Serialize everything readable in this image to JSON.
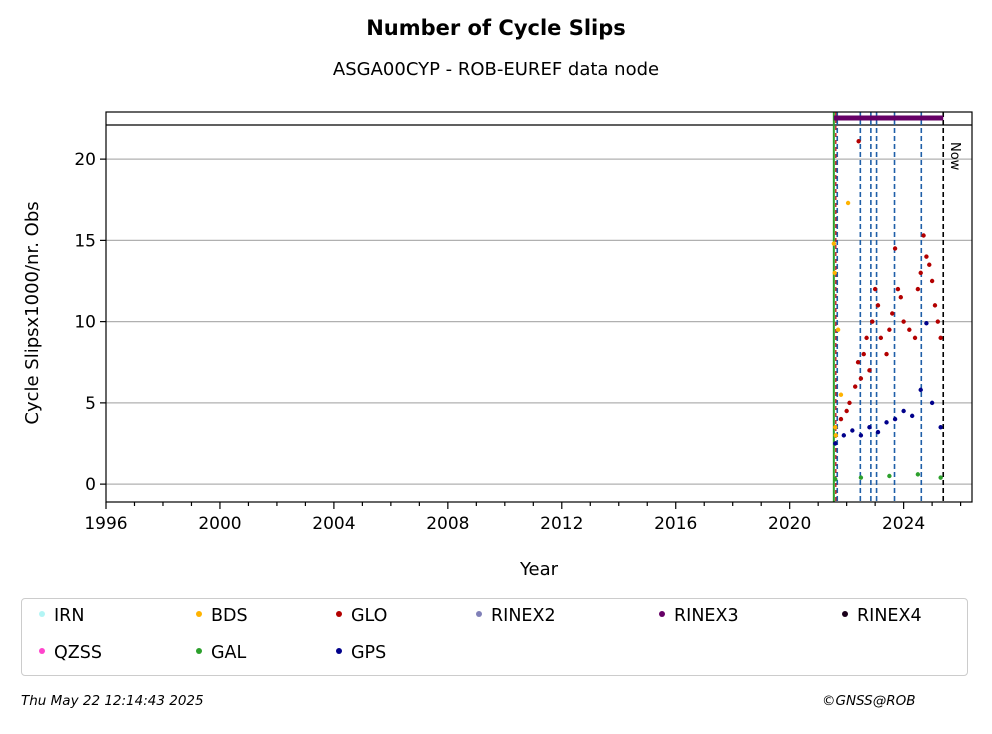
{
  "title": "Number of Cycle Slips",
  "subtitle": "ASGA00CYP - ROB-EUREF data node",
  "footer": {
    "timestamp": "Thu May 22 12:14:43 2025",
    "copyright": "©GNSS@ROB"
  },
  "chart_data": {
    "type": "scatter",
    "xlabel": "Year",
    "ylabel": "Cycle Slipsx1000/nr. Obs",
    "xlim": [
      1996,
      2026.4
    ],
    "ylim": [
      -1.1,
      22.9
    ],
    "x_ticks": [
      1996,
      2000,
      2004,
      2008,
      2012,
      2016,
      2020,
      2024
    ],
    "y_ticks": [
      0,
      5,
      10,
      15,
      20
    ],
    "grid": "horizontal",
    "now_label": "Now",
    "now_x": 2025.39,
    "station_start_x": 2021.55,
    "event_lines_x": [
      2021.67,
      2022.48,
      2022.85,
      2023.05,
      2023.68,
      2024.62
    ],
    "rinex3_period": [
      2021.55,
      2025.39
    ],
    "legend_placement": "bottom",
    "legend": [
      {
        "name": "IRN",
        "color": "#b3f5f5"
      },
      {
        "name": "BDS",
        "color": "#ffb300"
      },
      {
        "name": "GLO",
        "color": "#b30000"
      },
      {
        "name": "RINEX2",
        "color": "#8080b8"
      },
      {
        "name": "RINEX3",
        "color": "#660066"
      },
      {
        "name": "RINEX4",
        "color": "#1a001a"
      },
      {
        "name": "QZSS",
        "color": "#ff44cc"
      },
      {
        "name": "GAL",
        "color": "#2ca02c"
      },
      {
        "name": "GPS",
        "color": "#00008b"
      }
    ],
    "series": [
      {
        "name": "GLO",
        "color": "#b30000",
        "x": [
          2021.6,
          2021.8,
          2022.0,
          2022.1,
          2022.3,
          2022.4,
          2022.5,
          2022.6,
          2022.7,
          2022.8,
          2022.9,
          2023.0,
          2023.1,
          2023.2,
          2023.4,
          2023.5,
          2023.6,
          2023.7,
          2023.8,
          2023.9,
          2024.0,
          2024.2,
          2024.4,
          2024.5,
          2024.6,
          2024.7,
          2024.8,
          2024.9,
          2025.0,
          2025.1,
          2025.2,
          2025.3,
          2022.42
        ],
        "y": [
          3.5,
          4.0,
          4.5,
          5.0,
          6.0,
          7.5,
          6.5,
          8.0,
          9.0,
          7.0,
          10.0,
          12.0,
          11.0,
          9.0,
          8.0,
          9.5,
          10.5,
          14.5,
          12.0,
          11.5,
          10.0,
          9.5,
          9.0,
          12.0,
          13.0,
          15.3,
          14.0,
          13.5,
          12.5,
          11.0,
          10.0,
          9.0,
          21.1
        ]
      },
      {
        "name": "GPS",
        "color": "#00008b",
        "x": [
          2021.6,
          2021.9,
          2022.2,
          2022.5,
          2022.8,
          2023.1,
          2023.4,
          2023.7,
          2024.0,
          2024.3,
          2024.6,
          2024.8,
          2025.0,
          2025.3
        ],
        "y": [
          2.5,
          3.0,
          3.3,
          3.0,
          3.5,
          3.2,
          3.8,
          4.0,
          4.5,
          4.2,
          5.8,
          9.9,
          5.0,
          3.5
        ]
      },
      {
        "name": "BDS",
        "color": "#ffb300",
        "x": [
          2021.55,
          2021.58,
          2021.6,
          2021.62,
          2021.7,
          2021.8,
          2022.05
        ],
        "y": [
          14.8,
          13.0,
          3.5,
          3.0,
          9.5,
          5.5,
          17.3
        ]
      },
      {
        "name": "GAL",
        "color": "#2ca02c",
        "x": [
          2021.6,
          2022.5,
          2023.5,
          2024.5,
          2025.3
        ],
        "y": [
          0.3,
          0.4,
          0.5,
          0.6,
          0.4
        ]
      }
    ]
  }
}
